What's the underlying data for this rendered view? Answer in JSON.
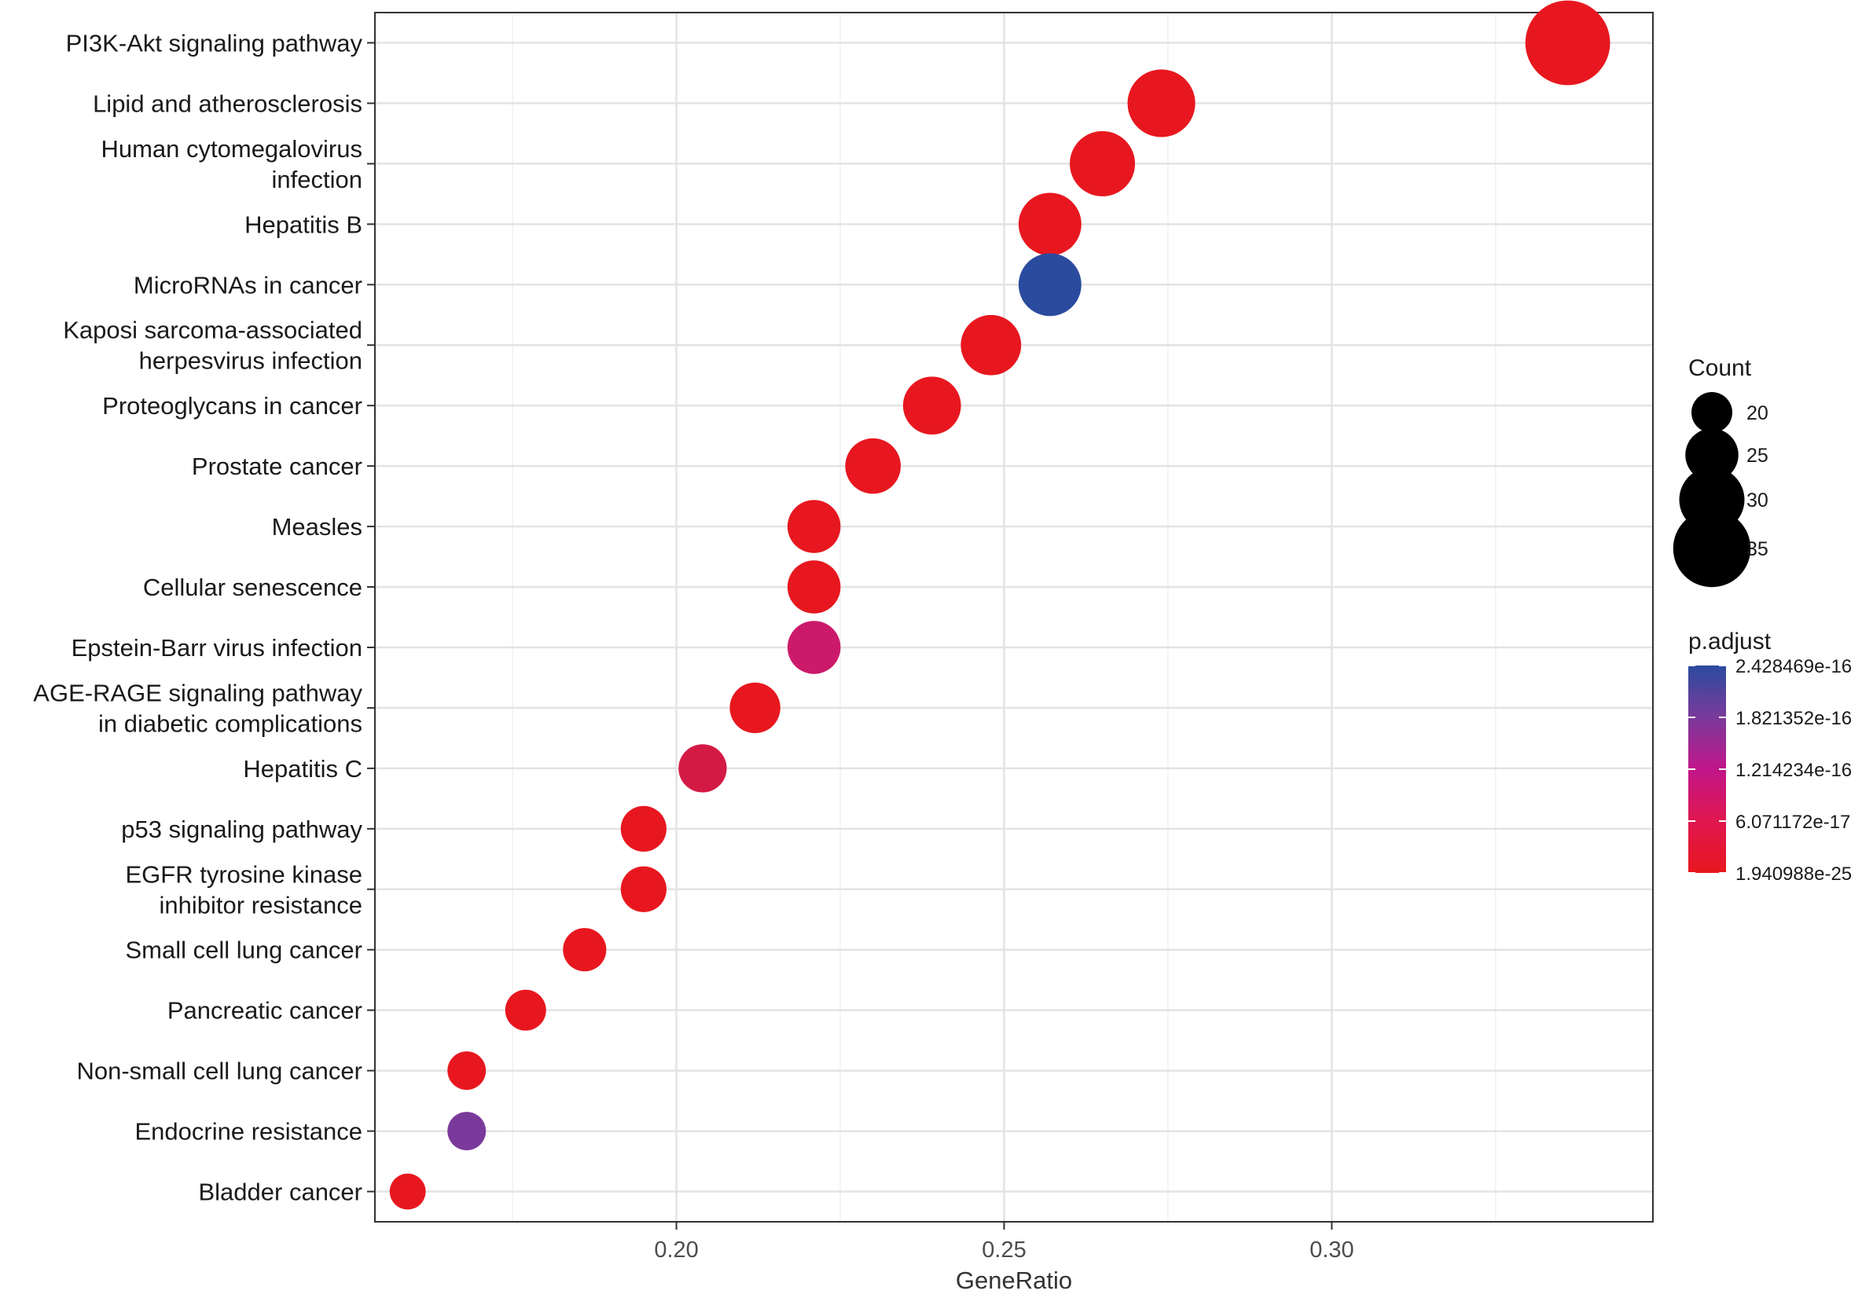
{
  "chart_data": {
    "type": "scatter",
    "subtype": "dot-plot",
    "xlabel": "GeneRatio",
    "ylabel": "",
    "title": "",
    "xlim": [
      0.154,
      0.349
    ],
    "xticks": [
      0.2,
      0.25,
      0.3
    ],
    "xtick_labels": [
      "0.20",
      "0.25",
      "0.30"
    ],
    "grid": true,
    "categories": [
      [
        "PI3K-Akt signaling pathway"
      ],
      [
        "Lipid and atherosclerosis"
      ],
      [
        "Human cytomegalovirus",
        "infection"
      ],
      [
        "Hepatitis B"
      ],
      [
        "MicroRNAs in cancer"
      ],
      [
        "Kaposi sarcoma-associated",
        "herpesvirus infection"
      ],
      [
        "Proteoglycans in cancer"
      ],
      [
        "Prostate cancer"
      ],
      [
        "Measles"
      ],
      [
        "Cellular senescence"
      ],
      [
        "Epstein-Barr virus infection"
      ],
      [
        "AGE-RAGE signaling pathway",
        "in diabetic complications"
      ],
      [
        "Hepatitis C"
      ],
      [
        "p53 signaling pathway"
      ],
      [
        "EGFR tyrosine kinase",
        "inhibitor resistance"
      ],
      [
        "Small cell lung cancer"
      ],
      [
        "Pancreatic cancer"
      ],
      [
        "Non-small cell lung cancer"
      ],
      [
        "Endocrine resistance"
      ],
      [
        "Bladder cancer"
      ]
    ],
    "gene_ratio": [
      0.336,
      0.274,
      0.265,
      0.257,
      0.257,
      0.248,
      0.239,
      0.23,
      0.221,
      0.221,
      0.221,
      0.212,
      0.204,
      0.195,
      0.195,
      0.186,
      0.177,
      0.168,
      0.168,
      0.159
    ],
    "count": [
      38,
      31,
      30,
      29,
      29,
      28,
      27,
      26,
      25,
      25,
      25,
      24,
      23,
      22,
      22,
      21,
      20,
      19,
      19,
      18
    ],
    "colors": [
      "#e8171f",
      "#e8171f",
      "#e8171f",
      "#e8171f",
      "#2a4b9e",
      "#e8171f",
      "#e8171f",
      "#e8171f",
      "#e8171f",
      "#e8171f",
      "#cc1a6a",
      "#e8171f",
      "#d31a45",
      "#e8171f",
      "#e8171f",
      "#e8171f",
      "#e8171f",
      "#e8171f",
      "#7a3a9b",
      "#e8171f"
    ],
    "legend_count": {
      "title": "Count",
      "values": [
        20,
        25,
        30,
        35
      ],
      "labels": [
        "20",
        "25",
        "30",
        "35"
      ]
    },
    "legend_padjust": {
      "title": "p.adjust",
      "labels": [
        "2.428469e-16",
        "1.821352e-16",
        "1.214234e-16",
        "6.071172e-17",
        "1.940988e-25"
      ],
      "gradient_colors": [
        "#2a4b9e",
        "#7a3a9b",
        "#c1168a",
        "#e0174f",
        "#e8171f"
      ]
    },
    "legend_placement": "right"
  }
}
